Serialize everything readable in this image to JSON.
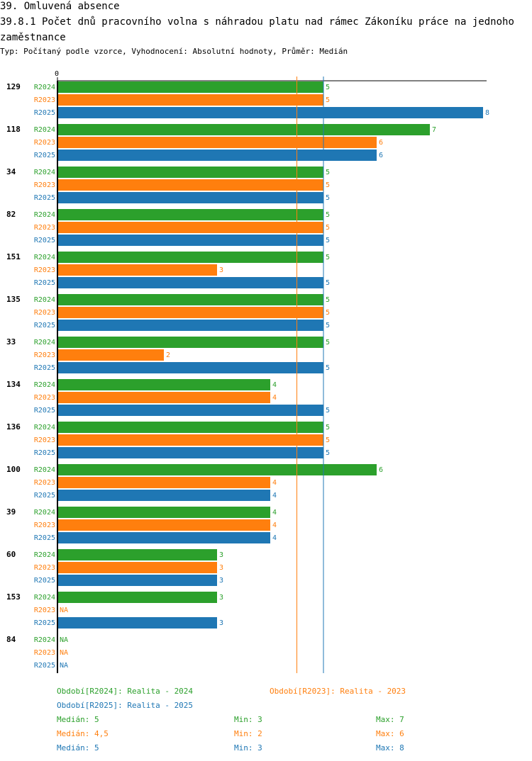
{
  "header": {
    "title": "39. Omluvená absence",
    "subtitle": "39.8.1 Počet dnů pracovního volna s náhradou platu nad rámec Zákoníku práce na jednoho zaměstnance",
    "type_line": "Typ: Počítaný podle vzorce, Vyhodnocení: Absolutní hodnoty, Průměr: Medián"
  },
  "chart_data": {
    "type": "bar",
    "orientation": "horizontal",
    "axis_zero_label": "0",
    "xlim": [
      0,
      8
    ],
    "categories": [
      "129",
      "118",
      "34",
      "82",
      "151",
      "135",
      "33",
      "134",
      "136",
      "100",
      "39",
      "60",
      "153",
      "84"
    ],
    "series": [
      {
        "name": "R2024",
        "color": "#2ca02c",
        "values": [
          5,
          7,
          5,
          5,
          5,
          5,
          5,
          4,
          5,
          6,
          4,
          3,
          3,
          null
        ],
        "labels": [
          "5",
          "7",
          "5",
          "5",
          "5",
          "5",
          "5",
          "4",
          "5",
          "6",
          "4",
          "3",
          "3",
          "NA"
        ]
      },
      {
        "name": "R2023",
        "color": "#ff7f0e",
        "values": [
          5,
          6,
          5,
          5,
          3,
          5,
          2,
          4,
          5,
          4,
          4,
          3,
          null,
          null
        ],
        "labels": [
          "5",
          "6",
          "5",
          "5",
          "3",
          "5",
          "2",
          "4",
          "5",
          "4",
          "4",
          "3",
          "NA",
          "NA"
        ]
      },
      {
        "name": "R2025",
        "color": "#1f77b4",
        "values": [
          8,
          6,
          5,
          5,
          5,
          5,
          5,
          5,
          5,
          4,
          4,
          3,
          3,
          null
        ],
        "labels": [
          "8",
          "6",
          "5",
          "5",
          "5",
          "5",
          "5",
          "5",
          "5",
          "4",
          "4",
          "3",
          "3",
          "NA"
        ]
      }
    ],
    "reference_lines": [
      {
        "series": "R2023",
        "value": 4.5
      },
      {
        "series": "R2025",
        "value": 5
      }
    ]
  },
  "legend": {
    "periods": [
      {
        "text": "Období[R2024]: Realita - 2024",
        "color": "#2ca02c"
      },
      {
        "text": "Období[R2023]: Realita - 2023",
        "color": "#ff7f0e"
      },
      {
        "text": "Období[R2025]: Realita - 2025",
        "color": "#1f77b4"
      }
    ],
    "stats": [
      {
        "median": "Medián: 5",
        "min": "Min: 3",
        "max": "Max: 7",
        "color": "#2ca02c"
      },
      {
        "median": "Medián: 4,5",
        "min": "Min: 2",
        "max": "Max: 6",
        "color": "#ff7f0e"
      },
      {
        "median": "Medián: 5",
        "min": "Min: 3",
        "max": "Max: 8",
        "color": "#1f77b4"
      }
    ]
  }
}
